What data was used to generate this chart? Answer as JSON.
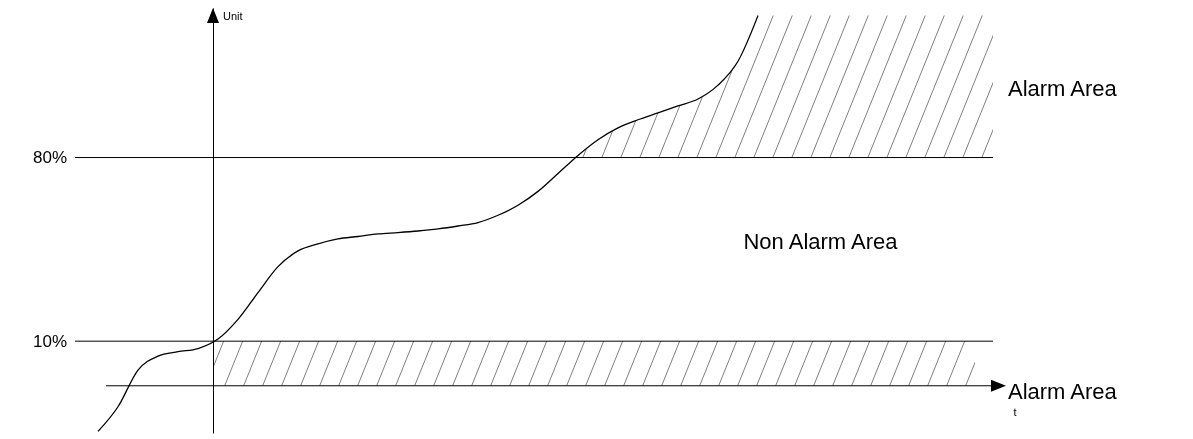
{
  "chart_data": {
    "type": "line",
    "ylabel": "Unit",
    "ylim": [
      -25,
      137
    ],
    "tick_labels": "y",
    "grid": "y",
    "yticks": [
      {
        "value": 10,
        "label": "10%"
      },
      {
        "value": 80,
        "label": "80%"
      }
    ],
    "categories": [
      null,
      null,
      null,
      null,
      null,
      null,
      null,
      null,
      null,
      null,
      null,
      null,
      null,
      null,
      null,
      null,
      null,
      null,
      null,
      null,
      null,
      null,
      null,
      null,
      null,
      null,
      null,
      null,
      null,
      null,
      null,
      null,
      null,
      null
    ],
    "series": [
      {
        "color": "#000000",
        "values": [
          -24.4,
          -15.0,
          -1.0,
          4.3,
          6.0,
          7.2,
          10.8,
          18.3,
          28.5,
          38.4,
          44.4,
          47.1,
          49.0,
          49.9,
          50.9,
          51.4,
          52.0,
          52.8,
          53.9,
          55.2,
          58.0,
          61.8,
          67.1,
          73.9,
          80.8,
          86.8,
          91.3,
          94.4,
          97.0,
          99.7,
          102.3,
          107.6,
          116.7,
          134.1
        ]
      }
    ],
    "bands": [
      {
        "axis": "y",
        "from": 80,
        "to": 137,
        "label": "Alarm Area"
      },
      {
        "axis": "y",
        "from": -7,
        "to": 10,
        "label": "Alarm Area"
      }
    ],
    "annotations": [
      "Non Alarm Area",
      "t"
    ]
  }
}
